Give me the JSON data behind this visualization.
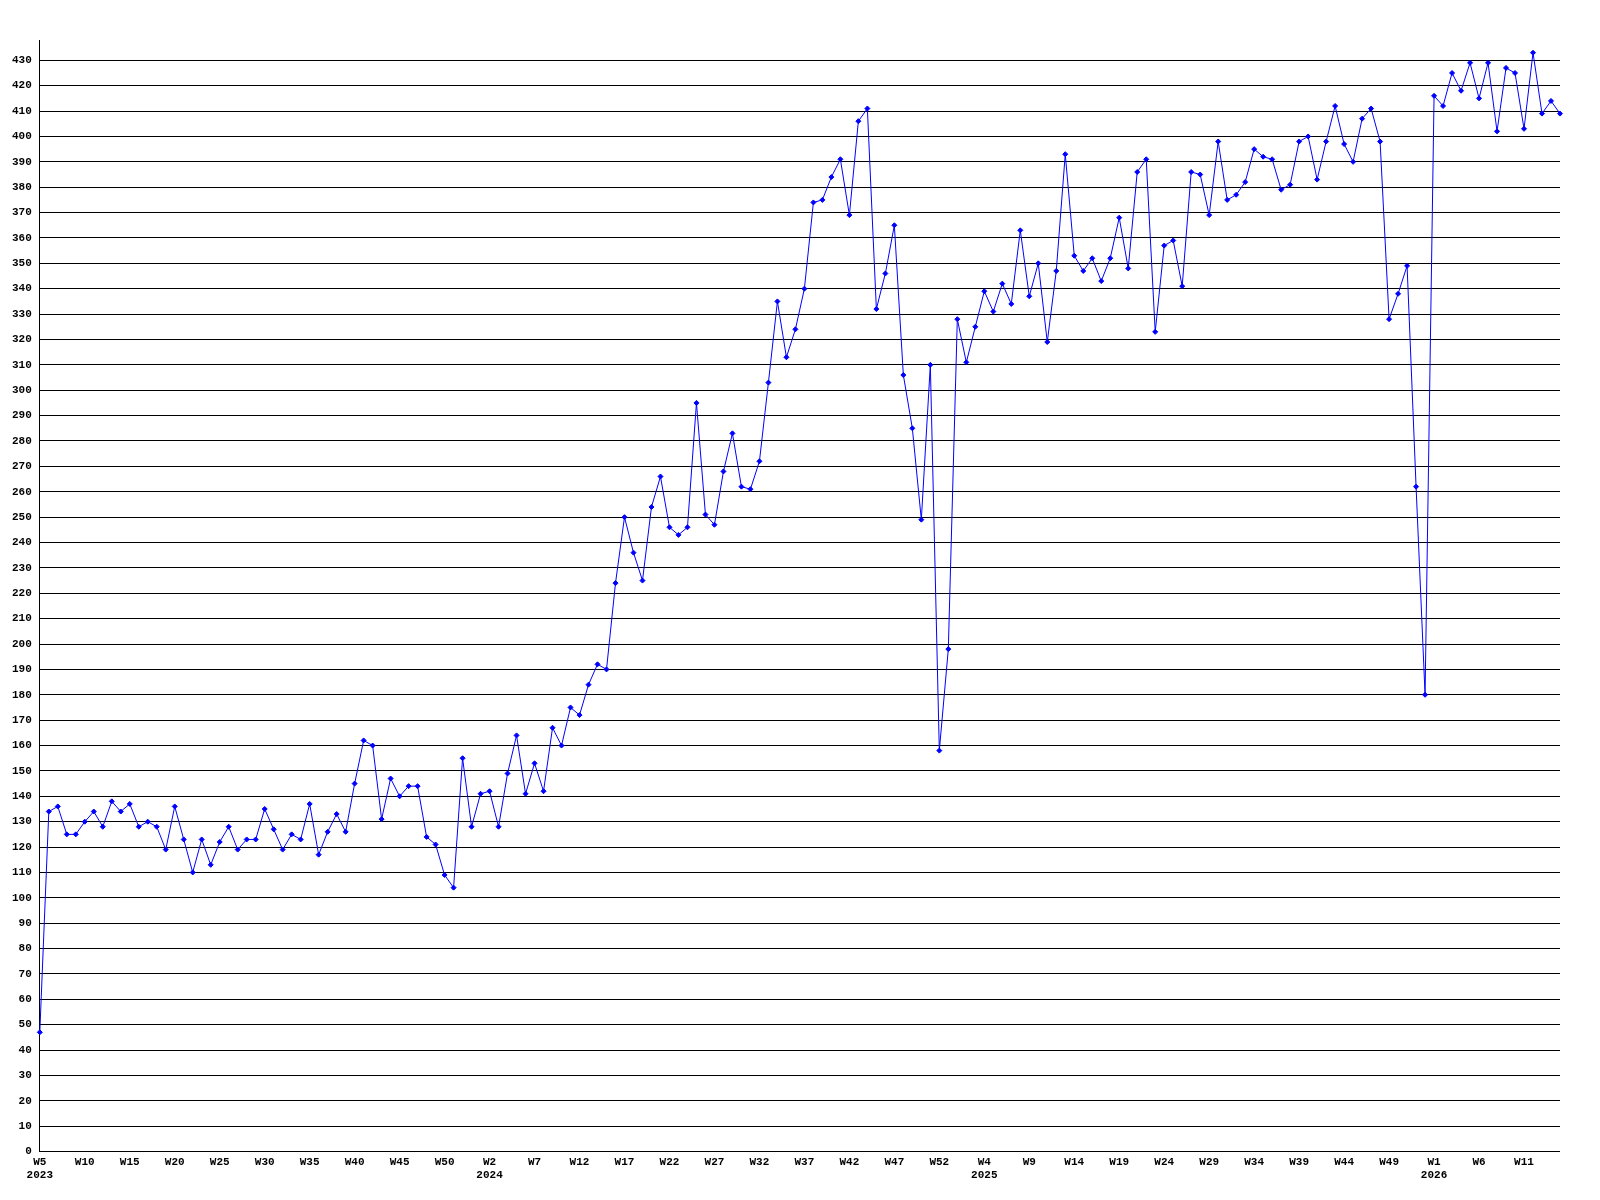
{
  "chart_data": {
    "type": "line",
    "categories": [
      "W5 2023",
      null,
      null,
      null,
      null,
      "W10",
      null,
      null,
      null,
      null,
      "W15",
      null,
      null,
      null,
      null,
      "W20",
      null,
      null,
      null,
      null,
      "W25",
      null,
      null,
      null,
      null,
      "W30",
      null,
      null,
      null,
      null,
      "W35",
      null,
      null,
      null,
      null,
      "W40",
      null,
      null,
      null,
      null,
      "W45",
      null,
      null,
      null,
      null,
      "W50",
      null,
      null,
      null,
      null,
      "W2 2024",
      null,
      null,
      null,
      null,
      "W7",
      null,
      null,
      null,
      null,
      "W12",
      null,
      null,
      null,
      null,
      "W17",
      null,
      null,
      null,
      null,
      "W22",
      null,
      null,
      null,
      null,
      "W27",
      null,
      null,
      null,
      null,
      "W32",
      null,
      null,
      null,
      null,
      "W37",
      null,
      null,
      null,
      null,
      "W42",
      null,
      null,
      null,
      null,
      "W47",
      null,
      null,
      null,
      null,
      "W52",
      null,
      null,
      null,
      null,
      "W4 2025",
      null,
      null,
      null,
      null,
      "W9",
      null,
      null,
      null,
      null,
      "W14",
      null,
      null,
      null,
      null,
      "W19",
      null,
      null,
      null,
      null,
      "W24",
      null,
      null,
      null,
      null,
      "W29",
      null,
      null,
      null,
      null,
      "W34",
      null,
      null,
      null,
      null,
      "W39",
      null,
      null,
      null,
      null,
      "W44",
      null,
      null,
      null,
      null,
      "W49",
      null,
      null,
      null,
      null,
      "W1 2026",
      null,
      null,
      null,
      null,
      "W6",
      null,
      null,
      null,
      null,
      "W11",
      null,
      null,
      null,
      null
    ],
    "series": [
      {
        "color": "#0000ff",
        "values": [
          47,
          134,
          136,
          125,
          125,
          130,
          134,
          128,
          138,
          134,
          137,
          128,
          130,
          128,
          119,
          136,
          123,
          110,
          123,
          113,
          122,
          128,
          119,
          123,
          123,
          135,
          127,
          119,
          125,
          123,
          137,
          117,
          126,
          133,
          126,
          145,
          162,
          160,
          131,
          147,
          140,
          144,
          144,
          124,
          121,
          109,
          104,
          155,
          128,
          141,
          142,
          128,
          149,
          164,
          141,
          153,
          142,
          167,
          160,
          175,
          172,
          184,
          192,
          190,
          224,
          250,
          236,
          225,
          254,
          266,
          246,
          243,
          246,
          295,
          251,
          247,
          268,
          283,
          262,
          261,
          272,
          303,
          335,
          313,
          324,
          340,
          374,
          375,
          384,
          391,
          369,
          406,
          411,
          332,
          346,
          365,
          306,
          285,
          249,
          310,
          158,
          198,
          328,
          311,
          325,
          339,
          331,
          342,
          334,
          363,
          337,
          350,
          319,
          347,
          393,
          353,
          347,
          352,
          343,
          352,
          368,
          348,
          386,
          391,
          323,
          357,
          359,
          341,
          386,
          385,
          369,
          398,
          375,
          377,
          382,
          395,
          392,
          391,
          379,
          381,
          398,
          400,
          383,
          398,
          412,
          397,
          390,
          407,
          411,
          398,
          328,
          338,
          349,
          262,
          180,
          416,
          412,
          425,
          418,
          429,
          415,
          429,
          402,
          427,
          425,
          403,
          433,
          409,
          414,
          409
        ]
      }
    ],
    "ylim": [
      0,
      438
    ],
    "yticks": [
      0,
      10,
      20,
      30,
      40,
      50,
      60,
      70,
      80,
      90,
      100,
      110,
      120,
      130,
      140,
      150,
      160,
      170,
      180,
      190,
      200,
      210,
      220,
      230,
      240,
      250,
      260,
      270,
      280,
      290,
      300,
      310,
      320,
      330,
      340,
      350,
      360,
      370,
      380,
      390,
      400,
      410,
      420,
      430
    ],
    "grid": "y",
    "legend": false,
    "marker": "diamond",
    "line_style": "solid"
  }
}
